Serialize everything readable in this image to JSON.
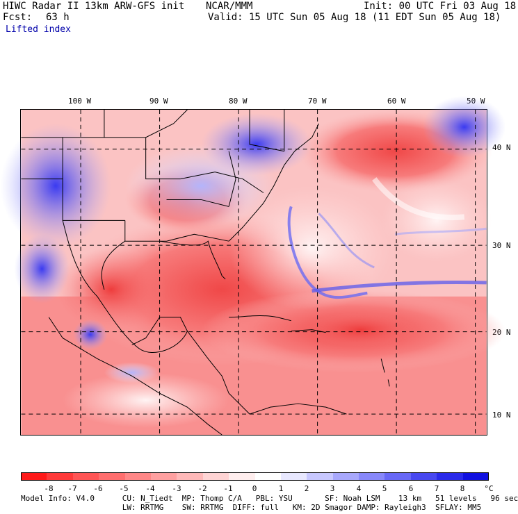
{
  "header": {
    "title_left": "HIWC Radar II 13km ARW-GFS init",
    "title_mid": "NCAR/MMM",
    "init": "Init: 00 UTC Fri 03 Aug 18",
    "fcst_label": "Fcst:",
    "fcst_value": "63 h",
    "valid": "Valid: 15 UTC Sun 05 Aug 18 (11 EDT Sun 05 Aug 18)",
    "field": "Lifted index"
  },
  "map": {
    "lon_labels": [
      "100 W",
      "90 W",
      "80 W",
      "70 W",
      "60 W",
      "50 W"
    ],
    "lat_labels": [
      "40 N",
      "30 N",
      "20 N",
      "10 N"
    ],
    "region": "Gulf of Mexico, Caribbean and western Atlantic"
  },
  "colorbar": {
    "labels": [
      "-8",
      "-7",
      "-6",
      "-5",
      "-4",
      "-3",
      "-2",
      "-1",
      "0",
      "1",
      "2",
      "3",
      "4",
      "5",
      "6",
      "7",
      "8"
    ],
    "unit": "°C",
    "colors": [
      "#ff1a1a",
      "#fe3a3a",
      "#fe5555",
      "#fe6e6e",
      "#fe8787",
      "#fea0a0",
      "#ffb9b9",
      "#ffd4d4",
      "#ffeeee",
      "#ffffff",
      "#e8e8ff",
      "#c8c8ff",
      "#a8a8fc",
      "#8888fa",
      "#6868f6",
      "#4848f0",
      "#2a2aea",
      "#1010e0"
    ]
  },
  "model_info": {
    "line1": "Model Info: V4.0      CU: N_Tiedt  MP: Thomp C/A   PBL: YSU       SF: Noah LSM    13 km   51 levels   96 sec",
    "line2": "                      LW: RRTMG    SW: RRTMG  DIFF: full   KM: 2D Smagor DAMP: Rayleigh3  SFLAY: MM5"
  }
}
